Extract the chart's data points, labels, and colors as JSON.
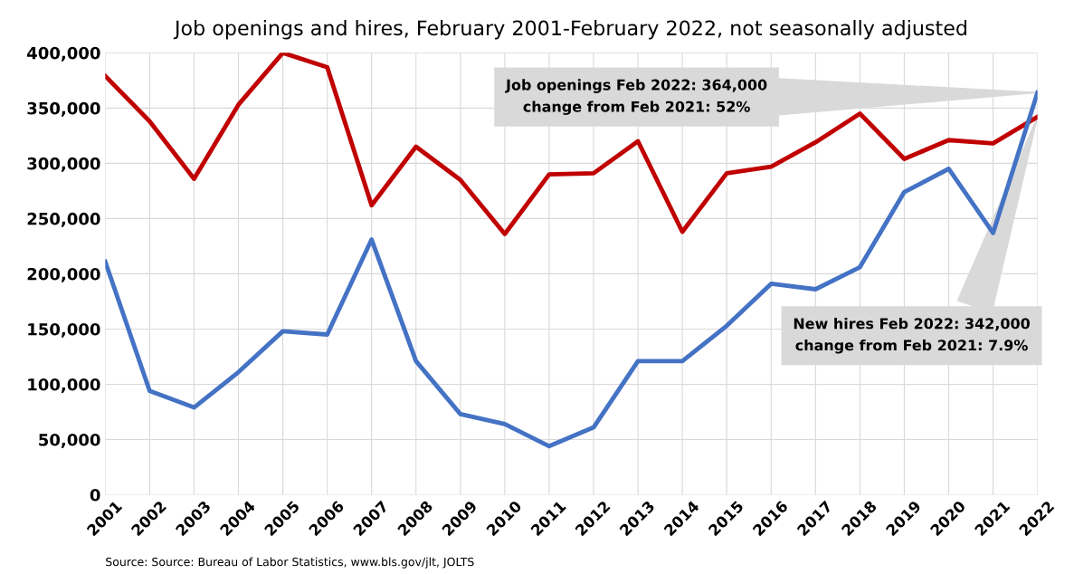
{
  "chart_data": {
    "type": "line",
    "title": "Job openings and hires, February 2001-February 2022, not seasonally adjusted",
    "categories": [
      "2001",
      "2002",
      "2003",
      "2004",
      "2005",
      "2006",
      "2007",
      "2008",
      "2009",
      "2010",
      "2011",
      "2012",
      "2013",
      "2014",
      "2015",
      "2016",
      "2017",
      "2018",
      "2019",
      "2020",
      "2021",
      "2022"
    ],
    "series": [
      {
        "color": "#c00000",
        "values": [
          379000,
          338000,
          286000,
          353000,
          400000,
          387000,
          262000,
          315000,
          285000,
          236000,
          290000,
          291000,
          320000,
          238000,
          291000,
          297000,
          319000,
          345000,
          304000,
          321000,
          318000,
          342000
        ]
      },
      {
        "color": "#4472c4",
        "values": [
          211000,
          94000,
          79000,
          111000,
          148000,
          145000,
          231000,
          121000,
          73000,
          64000,
          44000,
          61000,
          121000,
          121000,
          153000,
          191000,
          186000,
          206000,
          274000,
          295000,
          237000,
          364000
        ]
      }
    ],
    "ylim": [
      0,
      400000
    ],
    "yticks": [
      {
        "value": 0,
        "label": "0"
      },
      {
        "value": 50000,
        "label": "50,000"
      },
      {
        "value": 100000,
        "label": "100,000"
      },
      {
        "value": 150000,
        "label": "150,000"
      },
      {
        "value": 200000,
        "label": "200,000"
      },
      {
        "value": 250000,
        "label": "250,000"
      },
      {
        "value": 300000,
        "label": "300,000"
      },
      {
        "value": 350000,
        "label": "350,000"
      },
      {
        "value": 400000,
        "label": "400,000"
      }
    ],
    "grid": true,
    "line_style": "solid",
    "marker": "none",
    "annotations": [
      {
        "text": "Job openings Feb 2022: 364,000\nchange from Feb 2021: 52%",
        "x": "2022",
        "y": 364000
      },
      {
        "text": "New hires Feb 2022: 342,000\nchange from Feb 2021: 7.9%",
        "x": "2022",
        "y": 342000
      },
      "Source: Source: Bureau of Labor Statistics, www.bls.gov/jlt, JOLTS"
    ]
  }
}
